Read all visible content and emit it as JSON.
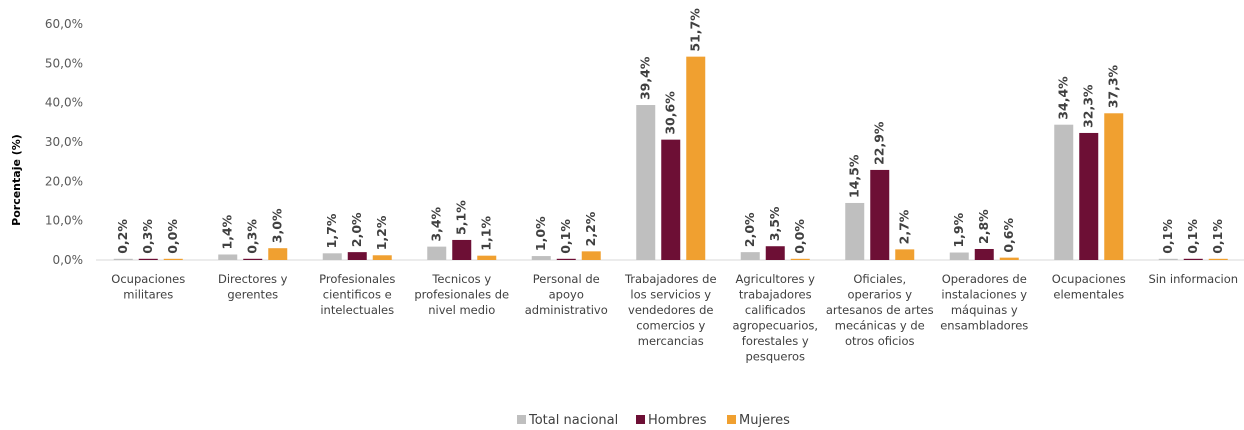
{
  "chart_data": {
    "type": "bar",
    "ylabel": "Porcentaje (%)",
    "ylim": [
      0,
      60
    ],
    "y_ticks": [
      "0,0%",
      "10,0%",
      "20,0%",
      "30,0%",
      "40,0%",
      "50,0%",
      "60,0%"
    ],
    "grid": false,
    "legend_position": "bottom",
    "categories": [
      [
        "Ocupaciones",
        "militares"
      ],
      [
        "Directores y",
        "gerentes"
      ],
      [
        "Profesionales",
        "cientificos e",
        "intelectuales"
      ],
      [
        "Tecnicos y",
        "profesionales de",
        "nivel medio"
      ],
      [
        "Personal de",
        "apoyo",
        "administrativo"
      ],
      [
        "Trabajadores de",
        "los servicios y",
        "vendedores de",
        "comercios y",
        "mercancias"
      ],
      [
        "Agricultores y",
        "trabajadores",
        "calificados",
        "agropecuarios,",
        "forestales y",
        "pesqueros"
      ],
      [
        "Oficiales,",
        "operarios y",
        "artesanos de artes",
        "mecánicas y de",
        "otros oficios"
      ],
      [
        "Operadores de",
        "instalaciones y",
        "máquinas y",
        "ensambladores"
      ],
      [
        "Ocupaciones",
        "elementales"
      ],
      [
        "Sin informacion"
      ]
    ],
    "series": [
      {
        "name": "Total nacional",
        "color": "#bfbfbf",
        "values": [
          0.2,
          1.4,
          1.7,
          3.4,
          1.0,
          39.4,
          2.0,
          14.5,
          1.9,
          34.4,
          0.1
        ],
        "labels": [
          "0,2%",
          "1,4%",
          "1,7%",
          "3,4%",
          "1,0%",
          "39,4%",
          "2,0%",
          "14,5%",
          "1,9%",
          "34,4%",
          "0,1%"
        ]
      },
      {
        "name": "Hombres",
        "color": "#6d0f35",
        "values": [
          0.3,
          0.3,
          2.0,
          5.1,
          0.1,
          30.6,
          3.5,
          22.9,
          2.8,
          32.3,
          0.1
        ],
        "labels": [
          "0,3%",
          "0,3%",
          "2,0%",
          "5,1%",
          "0,1%",
          "30,6%",
          "3,5%",
          "22,9%",
          "2,8%",
          "32,3%",
          "0,1%"
        ]
      },
      {
        "name": "Mujeres",
        "color": "#f0a030",
        "values": [
          0.0,
          3.0,
          1.2,
          1.1,
          2.2,
          51.7,
          0.0,
          2.7,
          0.6,
          37.3,
          0.1
        ],
        "labels": [
          "0,0%",
          "3,0%",
          "1,2%",
          "1,1%",
          "2,2%",
          "51,7%",
          "0,0%",
          "2,7%",
          "0,6%",
          "37,3%",
          "0,1%"
        ]
      }
    ]
  }
}
